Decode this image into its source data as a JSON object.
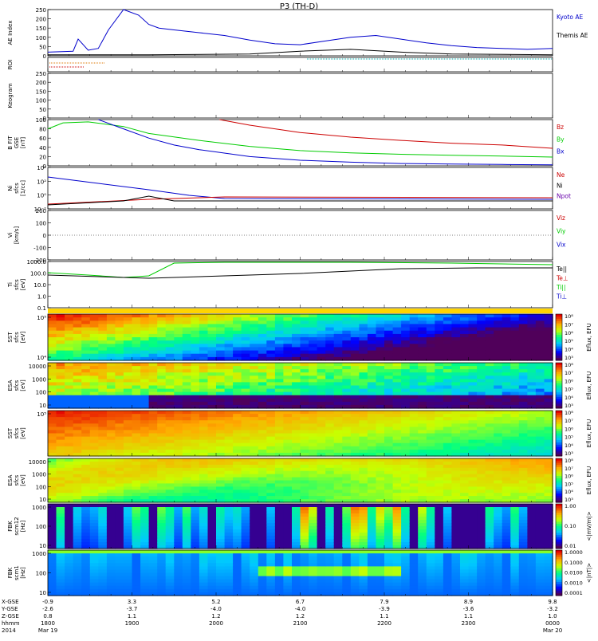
{
  "title": "P3 (TH-D)",
  "colors": {
    "frame": "#000000",
    "blue": "#0000cc",
    "green": "#00cc00",
    "red": "#cc0000",
    "purple": "#6600aa",
    "yellowbar": "#ffd400"
  },
  "footer": {
    "row_labels": [
      "X-GSE",
      "Y-GSE",
      "Z-GSE",
      "hhmm",
      "2014"
    ],
    "columns": [
      {
        "x": "-0.9",
        "y": "-2.6",
        "z": "0.8",
        "t": "1800",
        "d": "Mar 19"
      },
      {
        "x": "3.3",
        "y": "-3.7",
        "z": "1.1",
        "t": "1900",
        "d": ""
      },
      {
        "x": "5.2",
        "y": "-4.0",
        "z": "1.2",
        "t": "2000",
        "d": ""
      },
      {
        "x": "6.7",
        "y": "-4.0",
        "z": "1.2",
        "t": "2100",
        "d": ""
      },
      {
        "x": "7.9",
        "y": "-3.9",
        "z": "1.1",
        "t": "2200",
        "d": ""
      },
      {
        "x": "8.9",
        "y": "-3.6",
        "z": "1.1",
        "t": "2300",
        "d": ""
      },
      {
        "x": "9.8",
        "y": "-3.2",
        "z": "1.0",
        "t": "0000",
        "d": "Mar 20"
      }
    ]
  },
  "chart_data": [
    {
      "type": "line",
      "ylabel": "AE Index",
      "yticks": [
        "0",
        "50",
        "100",
        "150",
        "200",
        "250"
      ],
      "legend": [
        "Kyoto AE",
        "Themis AE"
      ],
      "series": [
        {
          "name": "Kyoto AE",
          "color": "blue",
          "x": [
            0,
            0.05,
            0.06,
            0.08,
            0.1,
            0.12,
            0.15,
            0.18,
            0.2,
            0.22,
            0.25,
            0.3,
            0.35,
            0.4,
            0.45,
            0.5,
            0.55,
            0.6,
            0.65,
            0.7,
            0.75,
            0.8,
            0.85,
            0.9,
            0.95,
            1.0
          ],
          "values": [
            20,
            25,
            90,
            30,
            40,
            140,
            250,
            220,
            170,
            150,
            140,
            125,
            110,
            85,
            65,
            60,
            80,
            100,
            110,
            90,
            70,
            55,
            45,
            40,
            35,
            40
          ]
        },
        {
          "name": "Themis AE",
          "color": "black",
          "x": [
            0,
            0.2,
            0.4,
            0.5,
            0.6,
            0.7,
            0.8,
            1.0
          ],
          "values": [
            5,
            5,
            10,
            25,
            35,
            20,
            10,
            5
          ]
        }
      ]
    },
    {
      "type": "line",
      "ylabel": "ROI",
      "yticks": []
    },
    {
      "type": "line",
      "ylabel": "Keogram",
      "yticks": [
        "0",
        "50",
        "100",
        "150",
        "200",
        "250"
      ]
    },
    {
      "type": "line",
      "ylabel": "B FIT\nGSE\n[nT]",
      "yticks": [
        "0",
        "20",
        "40",
        "60",
        "80",
        "100"
      ],
      "legend": [
        "Bz",
        "By",
        "Bx"
      ],
      "series": [
        {
          "name": "Bz",
          "color": "red",
          "x": [
            0.34,
            0.4,
            0.5,
            0.6,
            0.7,
            0.8,
            0.9,
            1.0
          ],
          "values": [
            100,
            88,
            72,
            62,
            55,
            49,
            45,
            38
          ]
        },
        {
          "name": "By",
          "color": "green",
          "x": [
            0,
            0.03,
            0.08,
            0.15,
            0.2,
            0.3,
            0.4,
            0.5,
            0.6,
            0.7,
            0.8,
            0.9,
            1.0
          ],
          "values": [
            80,
            93,
            95,
            85,
            70,
            55,
            42,
            33,
            28,
            25,
            23,
            21,
            19
          ]
        },
        {
          "name": "Bx",
          "color": "blue",
          "x": [
            0.1,
            0.15,
            0.2,
            0.25,
            0.3,
            0.4,
            0.5,
            0.6,
            0.7,
            0.8,
            0.9,
            1.0
          ],
          "values": [
            100,
            80,
            60,
            45,
            35,
            20,
            12,
            8,
            5,
            4,
            3,
            2
          ]
        }
      ]
    },
    {
      "type": "line",
      "ylabel": "Ni\nsfcs\n[1/cc]",
      "yticks": [
        "10⁻²",
        "10⁰",
        "10²",
        "10⁴"
      ],
      "legend": [
        "Ne",
        "Ni",
        "Npot"
      ]
    },
    {
      "type": "line",
      "ylabel": "Vi\n[km/s]",
      "yticks": [
        "-200",
        "-100",
        "0",
        "100",
        "200"
      ],
      "legend": [
        "Viz",
        "Viy",
        "Vix"
      ]
    },
    {
      "type": "line",
      "ylabel": "Ti\nsfcs\n[eV]",
      "yticks": [
        "0.1",
        "1.0",
        "10.0",
        "100.0",
        "1000.0"
      ],
      "legend": [
        "Te||",
        "Te⊥",
        "Ti||",
        "Ti⊥"
      ]
    },
    {
      "type": "heatmap",
      "ylabel": "SST\nsfcs\n[eV]",
      "yticks": [
        "10⁵",
        "10⁴"
      ],
      "cbar": "Eflux, EFU",
      "cticks": [
        "10⁸",
        "10⁷",
        "10⁶",
        "10⁵",
        "10⁴",
        "10³"
      ]
    },
    {
      "type": "heatmap",
      "ylabel": "ESA\nsfcs\n[eV]",
      "yticks": [
        "10000",
        "1000",
        "100",
        "10"
      ],
      "cbar": "Eflux, EFU",
      "cticks": [
        "10⁸",
        "10⁷",
        "10⁶",
        "10⁵",
        "10⁴",
        "10³"
      ]
    },
    {
      "type": "heatmap",
      "ylabel": "SST\nsfcs\n[eV]",
      "yticks": [
        "10⁵"
      ],
      "cbar": "Eflux, EFU",
      "cticks": [
        "10⁸",
        "10⁷",
        "10⁶",
        "10⁵",
        "10⁴",
        "10³"
      ]
    },
    {
      "type": "heatmap",
      "ylabel": "ESA\nsfcs\n[eV]",
      "yticks": [
        "10000",
        "1000",
        "100",
        "10"
      ],
      "cbar": "Eflux, EFU",
      "cticks": [
        "10⁸",
        "10⁷",
        "10⁶",
        "10⁵",
        "10⁴",
        "10³"
      ]
    },
    {
      "type": "heatmap",
      "ylabel": "FBK\nscm12\n[Hz]",
      "yticks": [
        "1000",
        "100",
        "10"
      ],
      "cbar": "<|mV/m|>",
      "cticks": [
        "1.00",
        "0.10",
        "0.01"
      ]
    },
    {
      "type": "heatmap",
      "ylabel": "FBK\nscm1\n[Hz]",
      "yticks": [
        "1000",
        "100",
        "10"
      ],
      "cbar": "<|nT|>",
      "cticks": [
        "1.0000",
        "0.1000",
        "0.0100",
        "0.0010",
        "0.0001"
      ]
    }
  ]
}
